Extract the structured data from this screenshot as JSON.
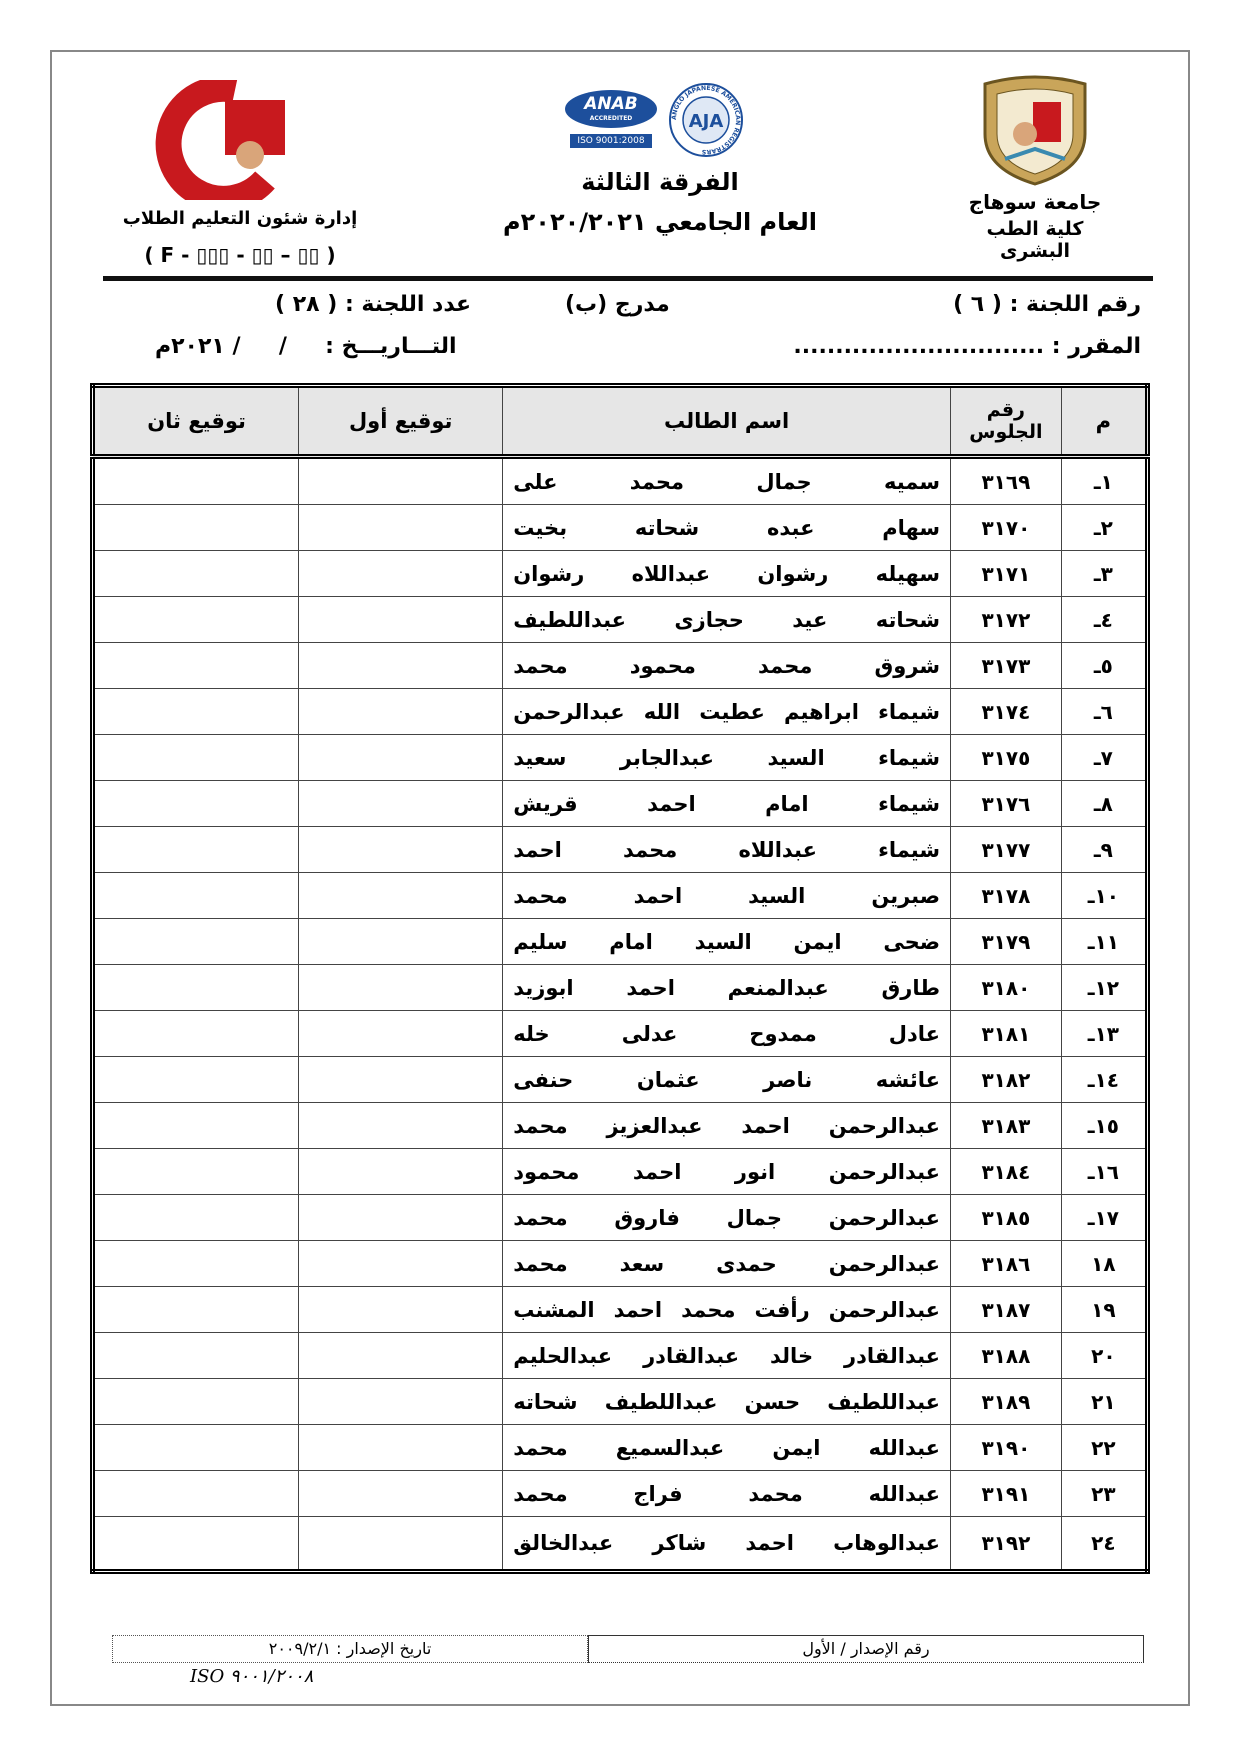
{
  "header": {
    "right_logo_text": "جامعة سوهاج",
    "left_logo_text": "جامعة سوهاج كلية الطب",
    "accreditation": {
      "anab": "ANAB",
      "anab_sub": "ACCREDITED",
      "iso": "ISO 9001:2008",
      "aja": "AJA",
      "aja_ring": "ANGLO JAPANESE AMERICAN REGISTRARS"
    },
    "university": "جامعة سوهاج",
    "faculty": "كلية الطب البشرى",
    "year_level": "الفرقة الثالثة",
    "academic_year": "العام الجامعي ٢٠٢٠/٢٠٢١م",
    "department": "إدارة شئون التعليم الطلاب",
    "form_code": "( F - ▯▯▯ - ▯▯ – ▯▯ )"
  },
  "info": {
    "committee_number": "رقم اللجنة : ( ٦ )",
    "hall": "مدرج (ب)",
    "committee_count": "عدد اللجنة : ( ٢٨ )",
    "course": "المقرر : ..............................",
    "date": "التـــاريـــخ :     /     / ٢٠٢١م"
  },
  "table": {
    "headers": {
      "index": "م",
      "seat": "رقم الجلوس",
      "name": "اسم الطالب",
      "sig1": "توقيع أول",
      "sig2": "توقيع ثان"
    },
    "rows": [
      {
        "index": "١ـ",
        "seat": "٣١٦٩",
        "name": "سميه جمال محمد على"
      },
      {
        "index": "٢ـ",
        "seat": "٣١٧٠",
        "name": "سهام عبده شحاته بخيت"
      },
      {
        "index": "٣ـ",
        "seat": "٣١٧١",
        "name": "سهيله رشوان عبداللاه رشوان"
      },
      {
        "index": "٤ـ",
        "seat": "٣١٧٢",
        "name": "شحاته عيد حجازى عبداللطيف"
      },
      {
        "index": "٥ـ",
        "seat": "٣١٧٣",
        "name": "شروق محمد محمود محمد"
      },
      {
        "index": "٦ـ",
        "seat": "٣١٧٤",
        "name": "شيماء ابراهيم عطيت الله عبدالرحمن"
      },
      {
        "index": "٧ـ",
        "seat": "٣١٧٥",
        "name": "شيماء السيد عبدالجابر سعيد"
      },
      {
        "index": "٨ـ",
        "seat": "٣١٧٦",
        "name": "شيماء امام احمد قريش"
      },
      {
        "index": "٩ـ",
        "seat": "٣١٧٧",
        "name": "شيماء عبداللاه محمد احمد"
      },
      {
        "index": "١٠ـ",
        "seat": "٣١٧٨",
        "name": "صبرين السيد احمد محمد"
      },
      {
        "index": "١١ـ",
        "seat": "٣١٧٩",
        "name": "ضحى ايمن السيد امام سليم"
      },
      {
        "index": "١٢ـ",
        "seat": "٣١٨٠",
        "name": "طارق عبدالمنعم احمد ابوزيد"
      },
      {
        "index": "١٣ـ",
        "seat": "٣١٨١",
        "name": "عادل ممدوح عدلى خله"
      },
      {
        "index": "١٤ـ",
        "seat": "٣١٨٢",
        "name": "عائشه ناصر عثمان حنفى"
      },
      {
        "index": "١٥ـ",
        "seat": "٣١٨٣",
        "name": "عبدالرحمن احمد عبدالعزيز محمد"
      },
      {
        "index": "١٦ـ",
        "seat": "٣١٨٤",
        "name": "عبدالرحمن انور احمد محمود"
      },
      {
        "index": "١٧ـ",
        "seat": "٣١٨٥",
        "name": "عبدالرحمن جمال فاروق محمد"
      },
      {
        "index": "١٨",
        "seat": "٣١٨٦",
        "name": "عبدالرحمن حمدى سعد محمد"
      },
      {
        "index": "١٩",
        "seat": "٣١٨٧",
        "name": "عبدالرحمن رأفت محمد احمد المشنب"
      },
      {
        "index": "٢٠",
        "seat": "٣١٨٨",
        "name": "عبدالقادر خالد عبدالقادر عبدالحليم"
      },
      {
        "index": "٢١",
        "seat": "٣١٨٩",
        "name": "عبداللطيف حسن عبداللطيف شحاته"
      },
      {
        "index": "٢٢",
        "seat": "٣١٩٠",
        "name": "عبدالله ايمن عبدالسميع محمد"
      },
      {
        "index": "٢٣",
        "seat": "٣١٩١",
        "name": "عبدالله محمد فراج محمد"
      },
      {
        "index": "٢٤",
        "seat": "٣١٩٢",
        "name": "عبدالوهاب احمد شاكر عبدالخالق"
      }
    ]
  },
  "footer": {
    "issue_number": "رقم الإصدار / الأول",
    "issue_date": "تاريخ الإصدار : ٢٠٠٩/٢/١",
    "iso": "ISO ٩٠٠١/٢٠٠٨"
  },
  "colors": {
    "header_fill": "#e6e6e6",
    "logo_red": "#c8191e",
    "anab_blue": "#1d4f9c",
    "crest_gold": "#c9a55a"
  }
}
